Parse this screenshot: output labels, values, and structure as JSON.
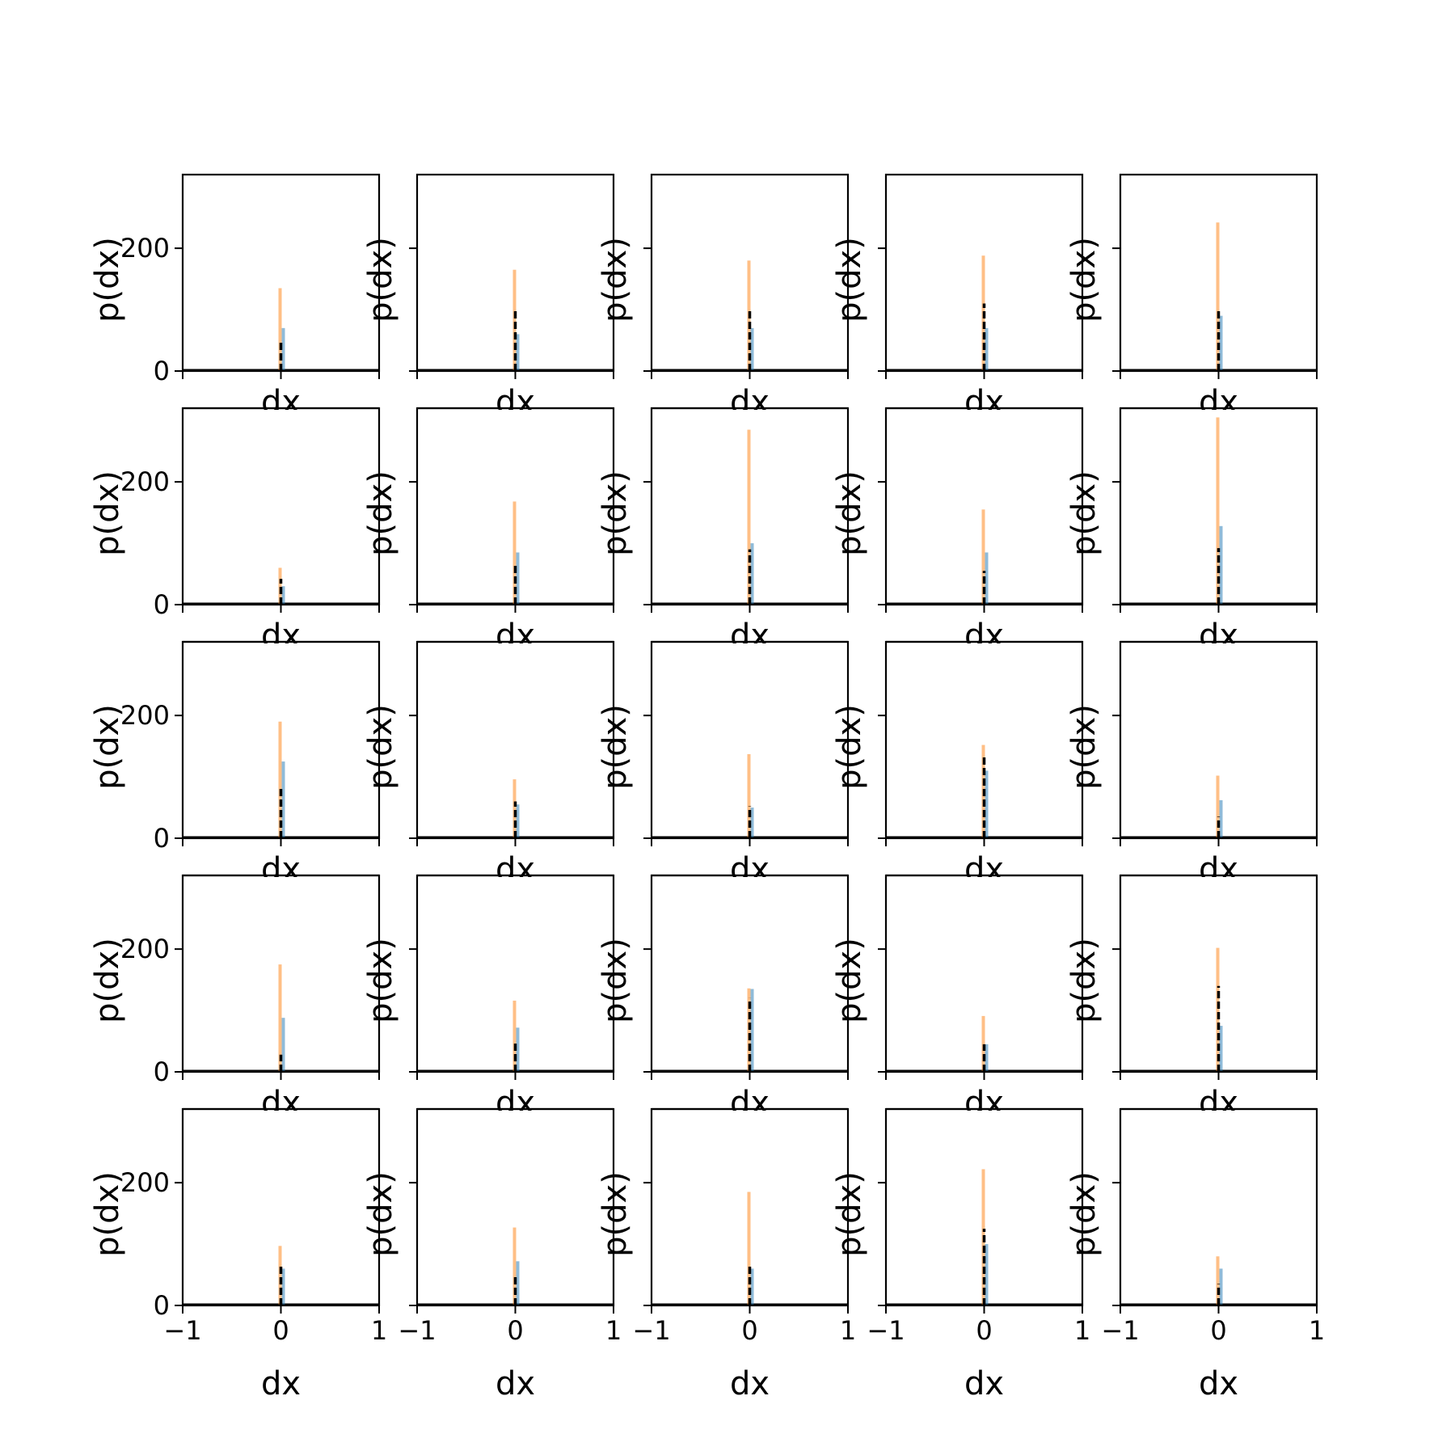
{
  "figure": {
    "grid_rows": 5,
    "grid_cols": 5
  },
  "colors": {
    "series_blue": "#1f77b4",
    "series_orange": "#ff7f0e",
    "series_black": "#000000",
    "axes": "#000000"
  },
  "chart_data": {
    "type": "bar",
    "layout": "5x5 small multiples of histograms",
    "shared": {
      "xlabel": "dx",
      "ylabel": "p(dx)",
      "xlim": [
        -1,
        1
      ],
      "ylim": [
        0,
        320
      ],
      "xticks": [
        -1,
        0,
        1
      ],
      "xtick_labels": [
        "−1",
        "0",
        "1"
      ],
      "yticks": [
        0,
        200
      ],
      "ytick_labels": [
        "0",
        "200"
      ],
      "grid": false,
      "legend": "none"
    },
    "panels": [
      {
        "orange": 135,
        "blue": 70,
        "black": 50
      },
      {
        "orange": 165,
        "blue": 60,
        "black": 100
      },
      {
        "orange": 180,
        "blue": 70,
        "black": 100
      },
      {
        "orange": 188,
        "blue": 70,
        "black": 110
      },
      {
        "orange": 242,
        "blue": 90,
        "black": 100
      },
      {
        "orange": 60,
        "blue": 30,
        "black": 42
      },
      {
        "orange": 168,
        "blue": 85,
        "black": 65
      },
      {
        "orange": 285,
        "blue": 100,
        "black": 90
      },
      {
        "orange": 155,
        "blue": 85,
        "black": 55
      },
      {
        "orange": 305,
        "blue": 128,
        "black": 92
      },
      {
        "orange": 190,
        "blue": 125,
        "black": 85
      },
      {
        "orange": 96,
        "blue": 55,
        "black": 60
      },
      {
        "orange": 137,
        "blue": 50,
        "black": 52
      },
      {
        "orange": 152,
        "blue": 110,
        "black": 135
      },
      {
        "orange": 102,
        "blue": 62,
        "black": 35
      },
      {
        "orange": 175,
        "blue": 88,
        "black": 28
      },
      {
        "orange": 116,
        "blue": 72,
        "black": 48
      },
      {
        "orange": 136,
        "blue": 135,
        "black": 120
      },
      {
        "orange": 91,
        "blue": 45,
        "black": 45
      },
      {
        "orange": 202,
        "blue": 75,
        "black": 140
      },
      {
        "orange": 97,
        "blue": 60,
        "black": 65
      },
      {
        "orange": 127,
        "blue": 72,
        "black": 50
      },
      {
        "orange": 185,
        "blue": 60,
        "black": 68
      },
      {
        "orange": 222,
        "blue": 100,
        "black": 125
      },
      {
        "orange": 80,
        "blue": 60,
        "black": 35
      }
    ]
  }
}
